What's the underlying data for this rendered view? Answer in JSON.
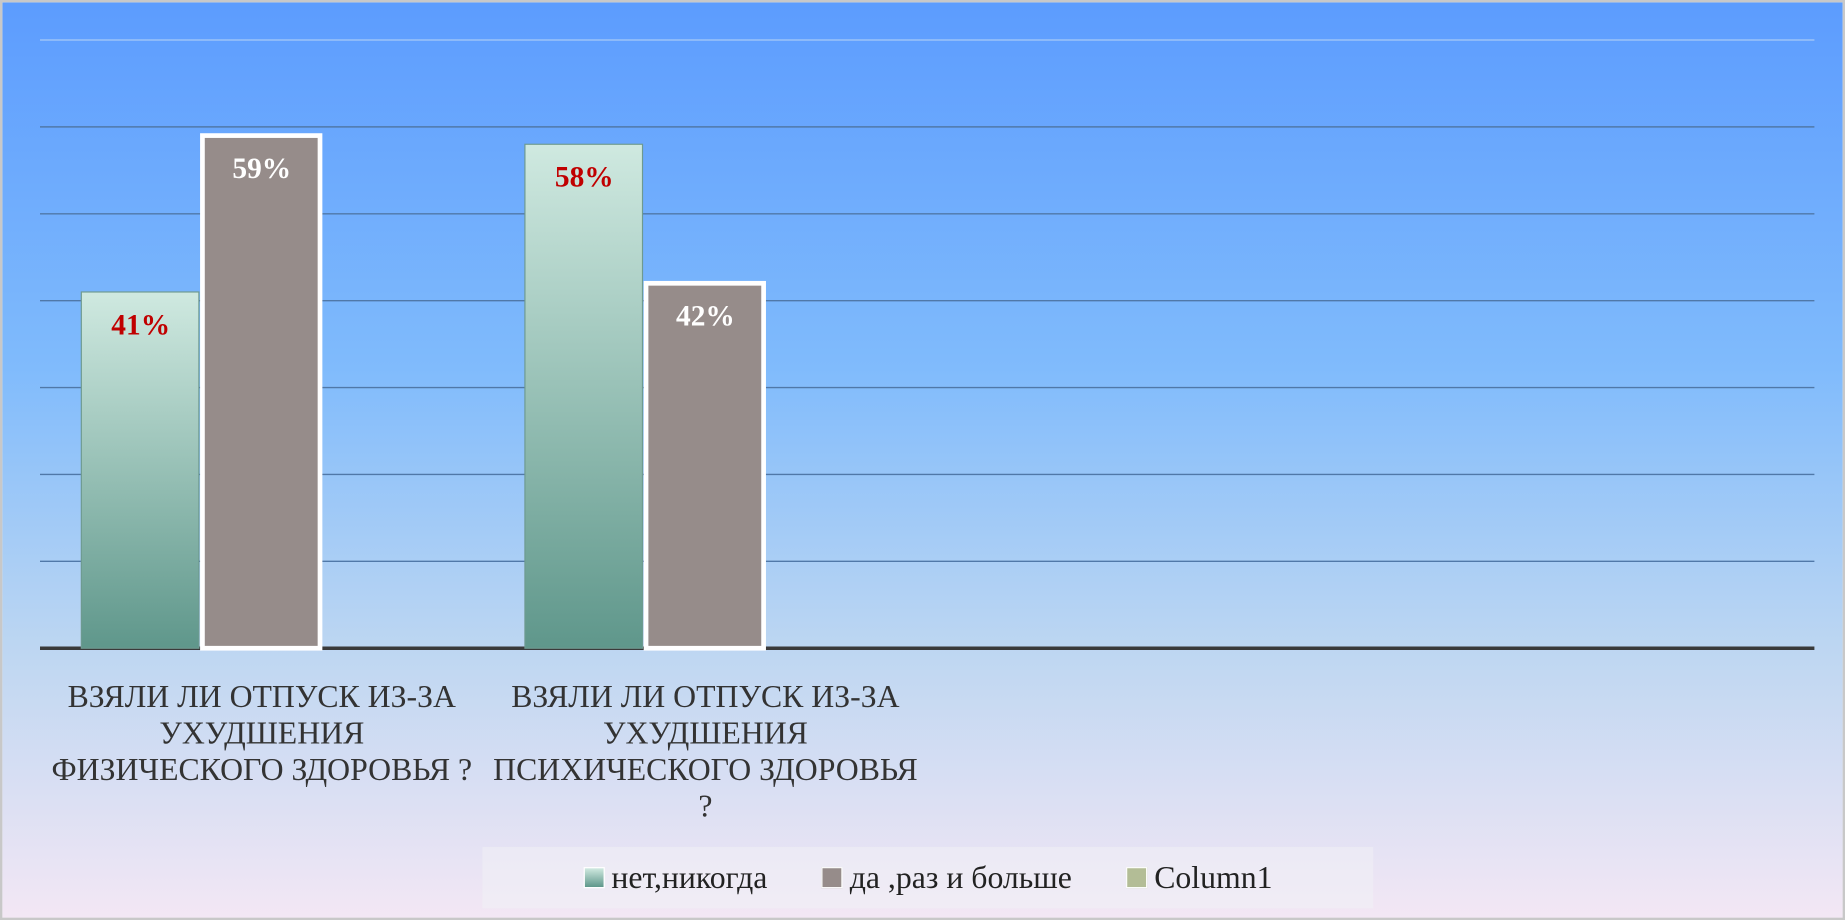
{
  "chart_data": {
    "type": "bar",
    "categories": [
      "ВЗЯЛИ ЛИ ОТПУСК ИЗ-ЗА УХУДШЕНИЯ ФИЗИЧЕСКОГО ЗДОРОВЬЯ ?",
      "ВЗЯЛИ ЛИ ОТПУСК ИЗ-ЗА УХУДШЕНИЯ ПСИХИЧЕСКОГО ЗДОРОВЬЯ ?",
      null,
      null
    ],
    "series": [
      {
        "name": "нет,никогда",
        "color": "#6a9e92",
        "values": [
          41,
          58,
          null,
          null
        ],
        "value_labels": [
          "41%",
          "58%",
          null,
          null
        ]
      },
      {
        "name": "да ,раз и больше",
        "color": "#968c8a",
        "values": [
          59,
          42,
          null,
          null
        ],
        "value_labels": [
          "59%",
          "42%",
          null,
          null
        ]
      },
      {
        "name": "Column1",
        "color": "#b3bd96",
        "values": [
          null,
          null,
          null,
          null
        ]
      }
    ],
    "ylim": [
      0,
      70
    ],
    "yticks": [
      0,
      10,
      20,
      30,
      40,
      50,
      60,
      70
    ],
    "grid": true,
    "legend": "bottom"
  }
}
